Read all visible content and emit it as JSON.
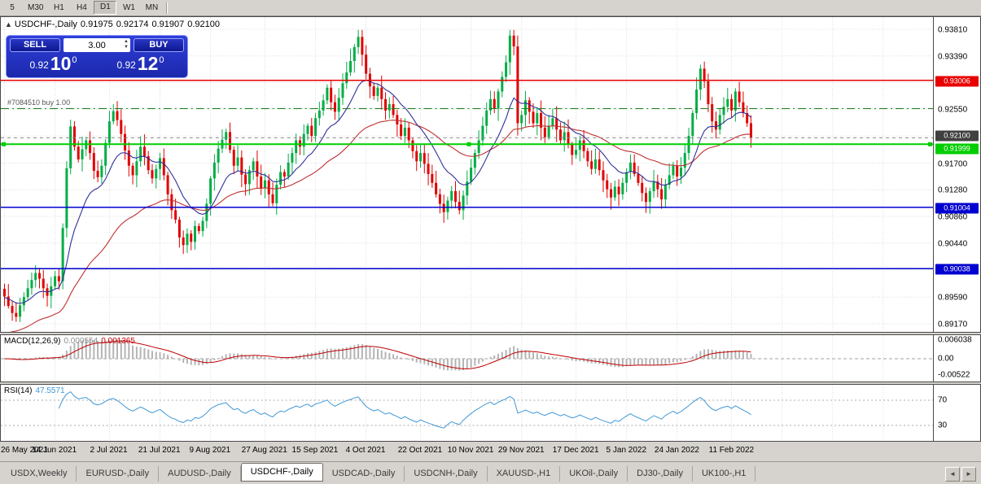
{
  "toolbar": {
    "timeframes": [
      {
        "label": "5",
        "active": false
      },
      {
        "label": "M30",
        "active": false
      },
      {
        "label": "H1",
        "active": false
      },
      {
        "label": "H4",
        "active": false
      },
      {
        "label": "D1",
        "active": true
      },
      {
        "label": "W1",
        "active": false
      },
      {
        "label": "MN",
        "active": false
      }
    ]
  },
  "header": {
    "collapse": "▲",
    "title": "USDCHF-,Daily",
    "open": "0.91975",
    "high": "0.92174",
    "low": "0.91907",
    "close": "0.92100"
  },
  "trade_panel": {
    "sell": "SELL",
    "buy": "BUY",
    "volume": "3.00",
    "spin_up": "▲",
    "spin_down": "▼",
    "sell_small": "0.92",
    "sell_big": "10",
    "sell_sup": "0",
    "buy_small": "0.92",
    "buy_big": "12",
    "buy_sup": "0"
  },
  "chart_data": {
    "type": "candlestick",
    "symbol": "USDCHF-,Daily",
    "first_open": 0.8972,
    "closes": [
      0.896,
      0.8945,
      0.8934,
      0.8928,
      0.8946,
      0.8959,
      0.8973,
      0.8986,
      0.8997,
      0.8988,
      0.8973,
      0.8961,
      0.8976,
      0.8992,
      0.8984,
      0.9068,
      0.9162,
      0.9228,
      0.9196,
      0.9176,
      0.9192,
      0.9206,
      0.9186,
      0.9158,
      0.9148,
      0.9166,
      0.9202,
      0.9236,
      0.9252,
      0.9238,
      0.9216,
      0.919,
      0.9166,
      0.9151,
      0.9173,
      0.9196,
      0.9181,
      0.9159,
      0.9146,
      0.9161,
      0.9178,
      0.9151,
      0.9121,
      0.9096,
      0.9081,
      0.9053,
      0.9041,
      0.9059,
      0.9046,
      0.9071,
      0.9063,
      0.9079,
      0.9106,
      0.9146,
      0.9171,
      0.9193,
      0.9207,
      0.9219,
      0.9191,
      0.9166,
      0.9179,
      0.9152,
      0.9137,
      0.9159,
      0.9173,
      0.9149,
      0.9131,
      0.9143,
      0.9121,
      0.9107,
      0.9136,
      0.9156,
      0.9149,
      0.9171,
      0.9186,
      0.9206,
      0.9196,
      0.9216,
      0.9229,
      0.9213,
      0.9241,
      0.9253,
      0.9269,
      0.9289,
      0.9266,
      0.9251,
      0.9273,
      0.9296,
      0.9313,
      0.9331,
      0.9353,
      0.9369,
      0.9341,
      0.9311,
      0.9291,
      0.9276,
      0.9289,
      0.9271,
      0.9253,
      0.9263,
      0.9246,
      0.9231,
      0.9213,
      0.9226,
      0.9206,
      0.9189,
      0.9173,
      0.9186,
      0.9169,
      0.9153,
      0.9139,
      0.9121,
      0.9106,
      0.9093,
      0.9111,
      0.9126,
      0.9109,
      0.9096,
      0.9119,
      0.9141,
      0.9163,
      0.9186,
      0.9206,
      0.9229,
      0.9253,
      0.9271,
      0.9256,
      0.9283,
      0.9306,
      0.9329,
      0.9371,
      0.9354,
      0.9233,
      0.9246,
      0.9269,
      0.9251,
      0.9233,
      0.9249,
      0.9226,
      0.9211,
      0.9229,
      0.9241,
      0.9223,
      0.9206,
      0.9219,
      0.9199,
      0.9183,
      0.9191,
      0.9206,
      0.9189,
      0.9173,
      0.9161,
      0.9176,
      0.9159,
      0.9143,
      0.9129,
      0.9116,
      0.9133,
      0.9121,
      0.9139,
      0.9156,
      0.9171,
      0.9153,
      0.9139,
      0.9123,
      0.9109,
      0.9126,
      0.9141,
      0.9129,
      0.9113,
      0.9136,
      0.9151,
      0.9166,
      0.9149,
      0.9163,
      0.9186,
      0.9213,
      0.9249,
      0.9286,
      0.9319,
      0.9299,
      0.9263,
      0.9236,
      0.9223,
      0.9246,
      0.9259,
      0.9271,
      0.9253,
      0.9283,
      0.9266,
      0.9249,
      0.9233,
      0.921
    ],
    "y_axis": {
      "p_top": 0.9381,
      "y_top": 15,
      "p_bot": 0.8917,
      "y_bot": 377
    },
    "y_ticks": [
      "0.93810",
      "0.93390",
      "0.92970",
      "0.92550",
      "0.92130",
      "0.91700",
      "0.91280",
      "0.90860",
      "0.90440",
      "0.90020",
      "0.89590",
      "0.89170"
    ],
    "x_labels": [
      {
        "i": 0,
        "label": "26 May 2021"
      },
      {
        "i": 13,
        "label": "14 Jun 2021"
      },
      {
        "i": 27,
        "label": "2 Jul 2021"
      },
      {
        "i": 40,
        "label": "21 Jul 2021"
      },
      {
        "i": 53,
        "label": "9 Aug 2021"
      },
      {
        "i": 67,
        "label": "27 Aug 2021"
      },
      {
        "i": 80,
        "label": "15 Sep 2021"
      },
      {
        "i": 93,
        "label": "4 Oct 2021"
      },
      {
        "i": 107,
        "label": "22 Oct 2021"
      },
      {
        "i": 120,
        "label": "10 Nov 2021"
      },
      {
        "i": 133,
        "label": "29 Nov 2021"
      },
      {
        "i": 147,
        "label": "17 Dec 2021"
      },
      {
        "i": 160,
        "label": "5 Jan 2022"
      },
      {
        "i": 173,
        "label": "24 Jan 2022"
      },
      {
        "i": 187,
        "label": "11 Feb 2022"
      }
    ],
    "extra_grid": [
      200,
      213,
      226,
      239
    ],
    "levels": [
      {
        "price": 0.93006,
        "color": "#e80000",
        "width": 1.5,
        "handles": false
      },
      {
        "price": 0.91999,
        "color": "#00ce00",
        "width": 2,
        "handles": true
      },
      {
        "price": 0.91004,
        "color": "#0000d0",
        "width": 1.5,
        "handles": false
      },
      {
        "price": 0.90038,
        "color": "#0000d0",
        "width": 1.5,
        "handles": false
      }
    ],
    "current_price": 0.921,
    "position": {
      "price": 0.9256,
      "label": "#7084510 buy 1.00"
    },
    "scale_tags": [
      {
        "text": "0.93006",
        "price": 0.93006,
        "bg": "#e80000",
        "fg": "#ffffff",
        "dy": 0
      },
      {
        "text": "0.92100",
        "price": 0.921,
        "bg": "#404040",
        "fg": "#ffffff",
        "dy": -3
      },
      {
        "text": "0.91999",
        "price": 0.91999,
        "bg": "#00ce00",
        "fg": "#ffffff",
        "dy": 5
      },
      {
        "text": "0.91004",
        "price": 0.91004,
        "bg": "#0000d0",
        "fg": "#ffffff",
        "dy": 0
      },
      {
        "text": "0.90038",
        "price": 0.90038,
        "bg": "#0000d0",
        "fg": "#ffffff",
        "dy": 0
      }
    ],
    "ma": {
      "blue_period": 13,
      "blue_seed": 0.8958,
      "red_period": 42,
      "red_seed": 0.8898
    },
    "macd": {
      "name": "MACD(12,26,9)",
      "value_main": "0.000554",
      "value_signal": "0.001365",
      "scale": [
        "0.006038",
        "0.00",
        "-0.00522"
      ]
    },
    "rsi": {
      "name": "RSI(14)",
      "value": "47.5571",
      "levels": [
        "70",
        "30"
      ]
    },
    "colors": {
      "up": "#00ad45",
      "down": "#e00000",
      "ma_fast": "#30309a",
      "ma_slow": "#c03030",
      "grid": "#dcdcdc",
      "macd_hist": "#b4b4b4",
      "macd_signal": "#c00000",
      "rsi": "#3f97d6"
    }
  },
  "tabs": {
    "items": [
      {
        "label": "USDX,Weekly",
        "active": false
      },
      {
        "label": "EURUSD-,Daily",
        "active": false
      },
      {
        "label": "AUDUSD-,Daily",
        "active": false
      },
      {
        "label": "USDCHF-,Daily",
        "active": true
      },
      {
        "label": "USDCAD-,Daily",
        "active": false
      },
      {
        "label": "USDCNH-,Daily",
        "active": false
      },
      {
        "label": "XAUUSD-,H1",
        "active": false
      },
      {
        "label": "UKOil-,Daily",
        "active": false
      },
      {
        "label": "DJ30-,Daily",
        "active": false
      },
      {
        "label": "UK100-,H1",
        "active": false
      }
    ],
    "scroll_left": "◄",
    "scroll_right": "►"
  }
}
